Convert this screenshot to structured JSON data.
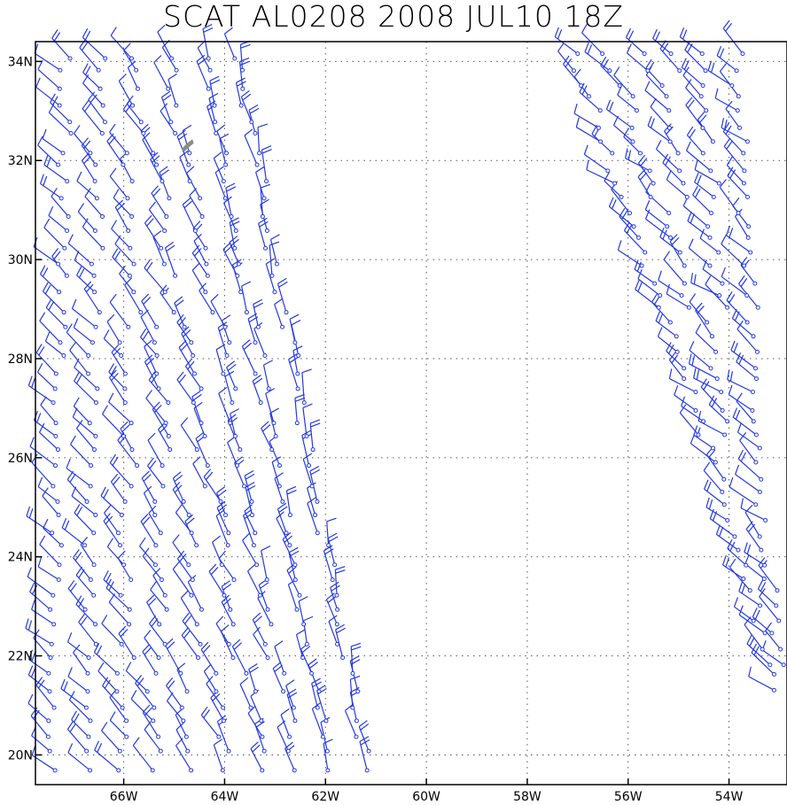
{
  "title": "SCAT AL0208 2008 JUL10 18Z",
  "colors": {
    "barb": "#2439e0",
    "grid": "#555555",
    "frame": "#000000",
    "island": "#8a8a8a"
  },
  "map": {
    "lon_range": [
      -67.75,
      -52.85
    ],
    "lat_range": [
      19.4,
      34.4
    ],
    "lon_ticks": [
      {
        "value": -66,
        "label": "66W"
      },
      {
        "value": -64,
        "label": "64W"
      },
      {
        "value": -62,
        "label": "62W"
      },
      {
        "value": -60,
        "label": "60W"
      },
      {
        "value": -58,
        "label": "58W"
      },
      {
        "value": -56,
        "label": "56W"
      },
      {
        "value": -54,
        "label": "54W"
      }
    ],
    "lat_ticks": [
      {
        "value": 34,
        "label": "34N"
      },
      {
        "value": 32,
        "label": "32N"
      },
      {
        "value": 30,
        "label": "30N"
      },
      {
        "value": 28,
        "label": "28N"
      },
      {
        "value": 26,
        "label": "26N"
      },
      {
        "value": 24,
        "label": "24N"
      },
      {
        "value": 22,
        "label": "22N"
      },
      {
        "value": 20,
        "label": "20N"
      }
    ],
    "grid": "dotted",
    "island": {
      "name_hidden": true,
      "lon": -64.75,
      "lat": 32.3
    }
  },
  "swaths": [
    {
      "id": "west",
      "lat_min": 19.4,
      "lat_max": 34.1,
      "edge_left_south": -67.75,
      "edge_left_north": -67.5,
      "edge_right_south": -60.8,
      "edge_right_north": -63.4
    },
    {
      "id": "east",
      "lat_min": 21.3,
      "lat_max": 34.4,
      "edge_left_south": -53.1,
      "edge_left_north": -57.5,
      "edge_right_south": -52.85,
      "edge_right_north": -53.5
    }
  ]
}
